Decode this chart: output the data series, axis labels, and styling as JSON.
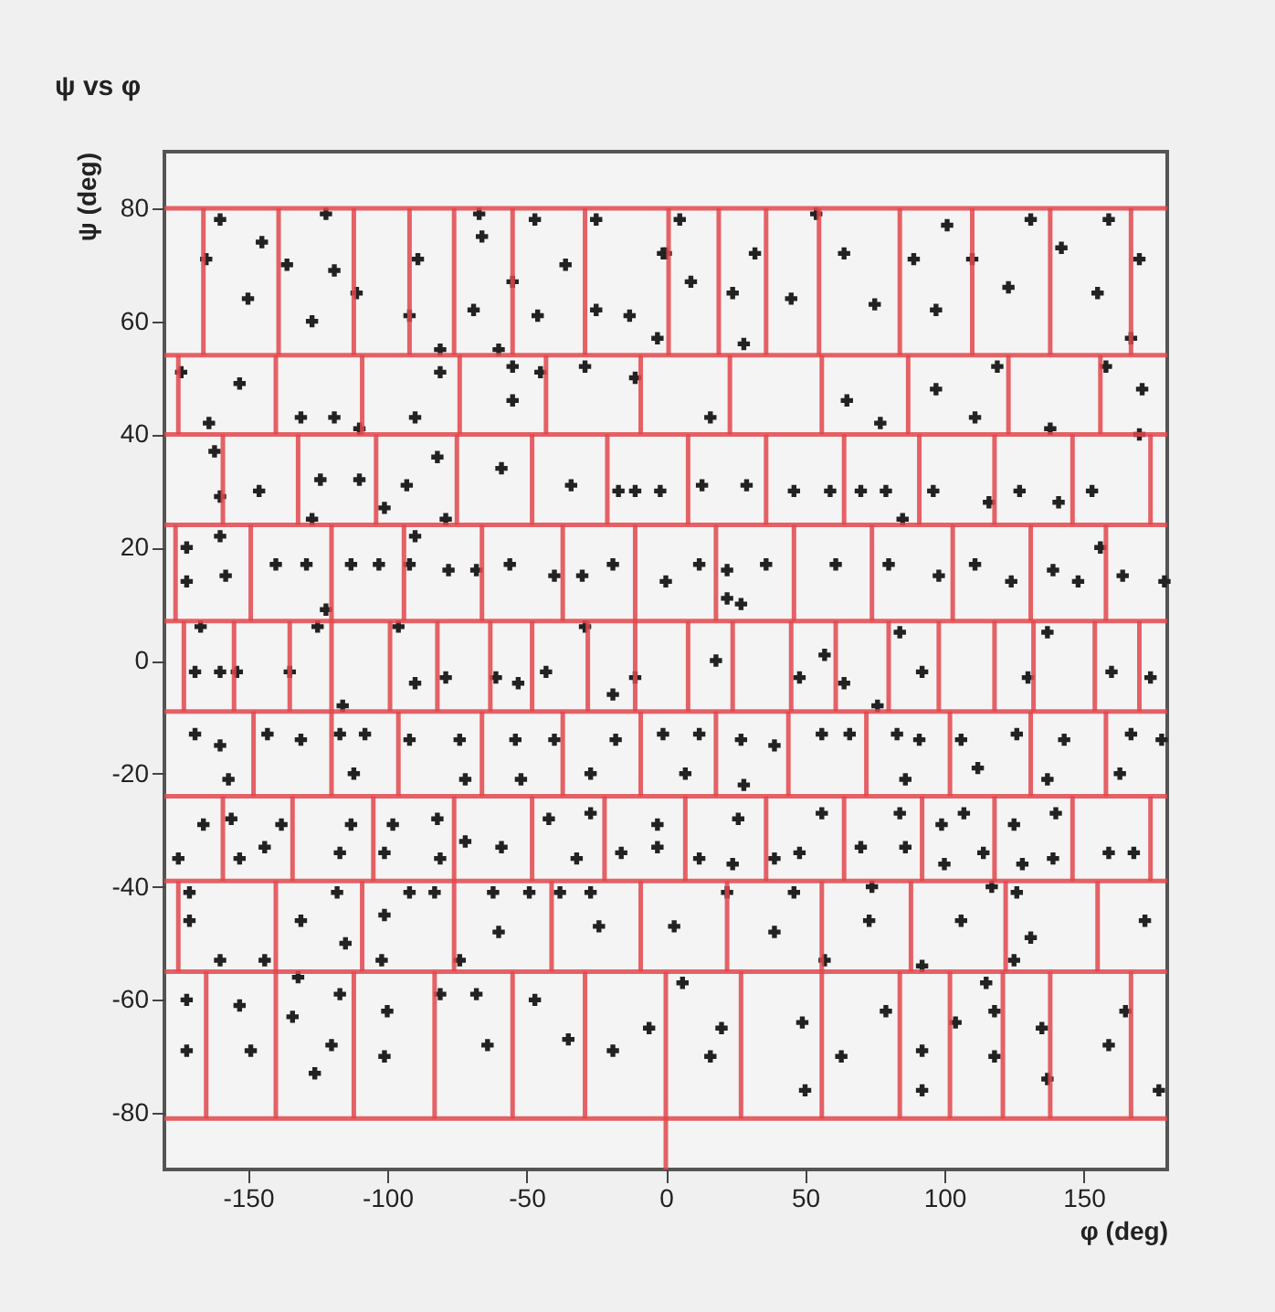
{
  "chart_data": {
    "type": "scatter",
    "title": "ψ vs φ",
    "xlabel": "φ (deg)",
    "ylabel": "ψ (deg)",
    "xlim": [
      -180,
      180
    ],
    "ylim": [
      -90,
      90
    ],
    "xticks": [
      -150,
      -100,
      -50,
      0,
      50,
      100,
      150
    ],
    "yticks": [
      -80,
      -60,
      -40,
      -20,
      0,
      20,
      40,
      60,
      80
    ],
    "grid": false,
    "series": [
      {
        "type": "scatter",
        "color": "#222222",
        "marker": "cross",
        "x": [
          -160,
          -145,
          -165,
          -136,
          -119,
          -150,
          -127,
          -122,
          -111,
          -89,
          -92,
          -67,
          -66,
          -55,
          -69,
          -47,
          -36,
          -46,
          -25,
          -25,
          -13,
          -1,
          -3,
          -81,
          -60,
          5,
          0,
          9,
          24,
          32,
          28,
          45,
          54,
          64,
          75,
          89,
          97,
          101,
          110,
          123,
          131,
          142,
          155,
          159,
          170,
          167,
          -153,
          -164,
          -131,
          -119,
          -90,
          -81,
          -55,
          -55,
          -45,
          -29,
          -11,
          -174,
          -110,
          16,
          65,
          77,
          97,
          111,
          119,
          138,
          158,
          171,
          170,
          -162,
          -146,
          -124,
          -110,
          -93,
          -82,
          -59,
          -34,
          -17,
          -11,
          -2,
          -160,
          -127,
          -101,
          -79,
          13,
          29,
          46,
          59,
          70,
          79,
          96,
          127,
          153,
          116,
          141,
          85,
          -172,
          -158,
          -140,
          -129,
          -113,
          -103,
          -92,
          -78,
          -68,
          -56,
          -40,
          -30,
          -19,
          0,
          -172,
          -160,
          -90,
          -122,
          12,
          22,
          36,
          22,
          61,
          80,
          98,
          111,
          124,
          139,
          148,
          164,
          179,
          27,
          156,
          -169,
          -160,
          -154,
          -135,
          -125,
          -116,
          -90,
          -79,
          -61,
          -53,
          -43,
          -29,
          -19,
          -11,
          -167,
          -96,
          18,
          48,
          64,
          92,
          84,
          130,
          137,
          160,
          174,
          57,
          76,
          -169,
          -160,
          -143,
          -131,
          -117,
          -108,
          -92,
          -74,
          -54,
          -40,
          -18,
          -1,
          -157,
          -112,
          -72,
          -52,
          -27,
          12,
          27,
          39,
          56,
          66,
          83,
          91,
          106,
          126,
          143,
          167,
          178,
          7,
          28,
          86,
          112,
          137,
          163,
          -166,
          -156,
          -153,
          -144,
          -138,
          -113,
          -117,
          -98,
          -101,
          -82,
          -81,
          -72,
          -59,
          -42,
          -32,
          -27,
          -16,
          -3,
          -3,
          -175,
          12,
          26,
          24,
          39,
          48,
          56,
          70,
          86,
          84,
          99,
          100,
          107,
          114,
          125,
          128,
          140,
          139,
          159,
          168,
          -171,
          -171,
          -160,
          -144,
          -131,
          -115,
          -118,
          -101,
          -102,
          -92,
          -83,
          -74,
          -62,
          -60,
          -49,
          -38,
          -27,
          -24,
          3,
          22,
          39,
          46,
          57,
          73,
          74,
          92,
          106,
          117,
          126,
          131,
          125,
          172,
          -172,
          -153,
          -149,
          -134,
          -126,
          -120,
          -117,
          -100,
          -101,
          -81,
          -68,
          -64,
          -47,
          -35,
          -19,
          -6,
          -172,
          -132,
          20,
          16,
          49,
          50,
          63,
          79,
          92,
          92,
          104,
          118,
          118,
          135,
          137,
          159,
          165,
          177,
          115,
          6
        ],
        "values": [
          78,
          74,
          71,
          70,
          69,
          64,
          60,
          79,
          65,
          71,
          61,
          79,
          75,
          67,
          62,
          78,
          70,
          61,
          78,
          62,
          61,
          72,
          57,
          55,
          55,
          78,
          72,
          67,
          65,
          72,
          56,
          64,
          79,
          72,
          63,
          71,
          62,
          77,
          71,
          66,
          78,
          73,
          65,
          78,
          71,
          57,
          49,
          42,
          43,
          43,
          43,
          51,
          52,
          46,
          51,
          52,
          50,
          51,
          41,
          43,
          46,
          42,
          48,
          43,
          52,
          41,
          52,
          48,
          40,
          37,
          30,
          32,
          32,
          31,
          36,
          34,
          31,
          30,
          30,
          30,
          29,
          25,
          27,
          25,
          31,
          31,
          30,
          30,
          30,
          30,
          30,
          30,
          30,
          28,
          28,
          25,
          14,
          15,
          17,
          17,
          17,
          17,
          17,
          16,
          16,
          17,
          15,
          15,
          17,
          14,
          20,
          22,
          22,
          9,
          17,
          16,
          17,
          11,
          17,
          17,
          15,
          17,
          14,
          16,
          14,
          15,
          14,
          10,
          20,
          -2,
          -2,
          -2,
          -2,
          6,
          -8,
          -4,
          -3,
          -3,
          -4,
          -2,
          6,
          -6,
          -3,
          6,
          6,
          0,
          -3,
          -4,
          -2,
          5,
          -3,
          5,
          -2,
          -3,
          1,
          -8,
          -13,
          -15,
          -13,
          -14,
          -13,
          -13,
          -14,
          -14,
          -14,
          -14,
          -14,
          -13,
          -21,
          -20,
          -21,
          -21,
          -20,
          -13,
          -14,
          -15,
          -13,
          -13,
          -13,
          -14,
          -14,
          -13,
          -14,
          -13,
          -14,
          -20,
          -22,
          -21,
          -19,
          -21,
          -20,
          -29,
          -28,
          -35,
          -33,
          -29,
          -29,
          -34,
          -29,
          -34,
          -28,
          -35,
          -32,
          -33,
          -28,
          -35,
          -27,
          -34,
          -29,
          -33,
          -35,
          -35,
          -28,
          -36,
          -35,
          -34,
          -27,
          -33,
          -33,
          -27,
          -29,
          -36,
          -27,
          -34,
          -29,
          -36,
          -27,
          -35,
          -34,
          -34,
          -41,
          -46,
          -53,
          -53,
          -46,
          -50,
          -41,
          -45,
          -53,
          -41,
          -41,
          -53,
          -41,
          -48,
          -41,
          -41,
          -41,
          -47,
          -47,
          -41,
          -48,
          -41,
          -53,
          -46,
          -40,
          -54,
          -46,
          -40,
          -41,
          -49,
          -53,
          -46,
          -60,
          -61,
          -69,
          -63,
          -73,
          -68,
          -59,
          -62,
          -70,
          -59,
          -59,
          -68,
          -60,
          -67,
          -69,
          -65,
          -69,
          -56,
          -65,
          -70,
          -64,
          -76,
          -70,
          -62,
          -69,
          -76,
          -64,
          -62,
          -70,
          -65,
          -74,
          -68,
          -62,
          -76,
          -57,
          -57
        ]
      },
      {
        "type": "line",
        "color": "#e0474c",
        "x": [
          -166,
          -166,
          null,
          -139,
          -139,
          null,
          -112,
          -112,
          null,
          -92,
          -92,
          null,
          -76,
          -76,
          null,
          -55,
          -55,
          null,
          -29,
          -29,
          null,
          1,
          1,
          null,
          19,
          19,
          null,
          36,
          36,
          null,
          55,
          55,
          null,
          84,
          84,
          null,
          110,
          110,
          null,
          138,
          138,
          null,
          167,
          167
        ],
        "values": [
          80,
          54,
          null,
          80,
          54,
          null,
          80,
          54,
          null,
          80,
          54,
          null,
          80,
          54,
          null,
          80,
          54,
          null,
          80,
          54,
          null,
          80,
          54,
          null,
          80,
          54,
          null,
          80,
          54,
          null,
          80,
          54,
          null,
          80,
          54,
          null,
          80,
          54,
          null,
          80,
          54,
          null,
          80,
          54
        ]
      },
      {
        "type": "line",
        "color": "#e0474c",
        "x": [
          -175,
          -175,
          null,
          -140,
          -140,
          null,
          -109,
          -109,
          null,
          -74,
          -74,
          null,
          -43,
          -43,
          null,
          -9,
          -9,
          null,
          23,
          23,
          null,
          56,
          56,
          null,
          87,
          87,
          null,
          123,
          123,
          null,
          156,
          156
        ],
        "values": [
          54,
          40,
          null,
          54,
          40,
          null,
          54,
          40,
          null,
          54,
          40,
          null,
          54,
          40,
          null,
          54,
          40,
          null,
          54,
          40,
          null,
          54,
          40,
          null,
          54,
          40,
          null,
          54,
          40,
          null,
          54,
          40
        ]
      },
      {
        "type": "line",
        "color": "#e0474c",
        "x": [
          -159,
          -159,
          null,
          -132,
          -132,
          null,
          -104,
          -104,
          null,
          -75,
          -75,
          null,
          -48,
          -48,
          null,
          -21,
          -21,
          null,
          8,
          8,
          null,
          36,
          36,
          null,
          64,
          64,
          null,
          91,
          91,
          null,
          118,
          118,
          null,
          146,
          146,
          null,
          174,
          174
        ],
        "values": [
          40,
          24,
          null,
          40,
          24,
          null,
          40,
          24,
          null,
          40,
          24,
          null,
          40,
          24,
          null,
          40,
          24,
          null,
          40,
          24,
          null,
          40,
          24,
          null,
          40,
          24,
          null,
          40,
          24,
          null,
          40,
          24,
          null,
          40,
          24,
          null,
          40,
          24
        ]
      },
      {
        "type": "line",
        "color": "#e0474c",
        "x": [
          -176,
          -176,
          null,
          -149,
          -149,
          null,
          -120,
          -120,
          null,
          -94,
          -94,
          null,
          -66,
          -66,
          null,
          -37,
          -37,
          null,
          -11,
          -11,
          null,
          18,
          18,
          null,
          46,
          46,
          null,
          74,
          74,
          null,
          103,
          103,
          null,
          131,
          131,
          null,
          158,
          158
        ],
        "values": [
          24,
          7,
          null,
          24,
          7,
          null,
          24,
          7,
          null,
          24,
          7,
          null,
          24,
          7,
          null,
          24,
          7,
          null,
          24,
          7,
          null,
          24,
          7,
          null,
          24,
          7,
          null,
          24,
          7,
          null,
          24,
          7,
          null,
          24,
          7,
          null,
          24,
          7
        ]
      },
      {
        "type": "line",
        "color": "#e0474c",
        "x": [
          -173,
          -173,
          null,
          -155,
          -155,
          null,
          -135,
          -135,
          null,
          -120,
          -120,
          null,
          -99,
          -99,
          null,
          -82,
          -82,
          null,
          -63,
          -63,
          null,
          -48,
          -48,
          null,
          -28,
          -28,
          null,
          -11,
          -11,
          null,
          8,
          8,
          null,
          24,
          24,
          null,
          45,
          45,
          null,
          61,
          61,
          null,
          80,
          80,
          null,
          98,
          98,
          null,
          118,
          118,
          null,
          132,
          132,
          null,
          154,
          154,
          null,
          170,
          170
        ],
        "values": [
          7,
          -9,
          null,
          7,
          -9,
          null,
          7,
          -9,
          null,
          7,
          -9,
          null,
          7,
          -9,
          null,
          7,
          -9,
          null,
          7,
          -9,
          null,
          7,
          -9,
          null,
          7,
          -9,
          null,
          7,
          -9,
          null,
          7,
          -9,
          null,
          7,
          -9,
          null,
          7,
          -9,
          null,
          7,
          -9,
          null,
          7,
          -9,
          null,
          7,
          -9,
          null,
          7,
          -9,
          null,
          7,
          -9,
          null,
          7,
          -9,
          null,
          7,
          -9
        ]
      },
      {
        "type": "line",
        "color": "#e0474c",
        "x": [
          -148,
          -148,
          null,
          -120,
          -120,
          null,
          -96,
          -96,
          null,
          -66,
          -66,
          null,
          -37,
          -37,
          null,
          -9,
          -9,
          null,
          18,
          18,
          null,
          44,
          44,
          null,
          72,
          72,
          null,
          102,
          102,
          null,
          131,
          131,
          null,
          158,
          158
        ],
        "values": [
          -9,
          -24,
          null,
          -9,
          -24,
          null,
          -9,
          -24,
          null,
          -9,
          -24,
          null,
          -9,
          -24,
          null,
          -9,
          -24,
          null,
          -9,
          -24,
          null,
          -9,
          -24,
          null,
          -9,
          -24,
          null,
          -9,
          -24,
          null,
          -9,
          -24,
          null,
          -9,
          -24
        ]
      },
      {
        "type": "line",
        "color": "#e0474c",
        "x": [
          -159,
          -159,
          null,
          -134,
          -134,
          null,
          -105,
          -105,
          null,
          -76,
          -76,
          null,
          -48,
          -48,
          null,
          -22,
          -22,
          null,
          7,
          7,
          null,
          36,
          36,
          null,
          64,
          64,
          null,
          92,
          92,
          null,
          118,
          118,
          null,
          146,
          146,
          null,
          174,
          174
        ],
        "values": [
          -24,
          -39,
          null,
          -24,
          -39,
          null,
          -24,
          -39,
          null,
          -24,
          -39,
          null,
          -24,
          -39,
          null,
          -24,
          -39,
          null,
          -24,
          -39,
          null,
          -24,
          -39,
          null,
          -24,
          -39,
          null,
          -24,
          -39,
          null,
          -24,
          -39,
          null,
          -24,
          -39,
          null,
          -24,
          -39
        ]
      },
      {
        "type": "line",
        "color": "#e0474c",
        "x": [
          -175,
          -175,
          null,
          -140,
          -140,
          null,
          -109,
          -109,
          null,
          -76,
          -76,
          null,
          -41,
          -41,
          null,
          -9,
          -9,
          null,
          22,
          22,
          null,
          56,
          56,
          null,
          88,
          88,
          null,
          122,
          122,
          null,
          155,
          155
        ],
        "values": [
          -39,
          -55,
          null,
          -39,
          -55,
          null,
          -39,
          -55,
          null,
          -39,
          -55,
          null,
          -39,
          -55,
          null,
          -39,
          -55,
          null,
          -39,
          -55,
          null,
          -39,
          -55,
          null,
          -39,
          -55,
          null,
          -39,
          -55,
          null,
          -39,
          -55
        ]
      },
      {
        "type": "line",
        "color": "#e0474c",
        "x": [
          -165,
          -165,
          null,
          -140,
          -140,
          null,
          -112,
          -112,
          null,
          -83,
          -83,
          null,
          -55,
          -55,
          null,
          -29,
          -29,
          null,
          0,
          0,
          null,
          27,
          27,
          null,
          56,
          56,
          null,
          84,
          84,
          null,
          102,
          102,
          null,
          121,
          121,
          null,
          138,
          138,
          null,
          167,
          167
        ],
        "values": [
          -55,
          -81,
          null,
          -55,
          -81,
          null,
          -55,
          -81,
          null,
          -55,
          -81,
          null,
          -55,
          -81,
          null,
          -55,
          -81,
          null,
          -55,
          -90,
          null,
          -55,
          -81,
          null,
          -55,
          -81,
          null,
          -55,
          -81,
          null,
          -55,
          -81,
          null,
          -55,
          -81,
          null,
          -55,
          -81,
          null,
          -55,
          -81
        ]
      }
    ],
    "ref_lines": [
      {
        "axis": "y",
        "value": 80,
        "color": "#e0474c"
      },
      {
        "axis": "y",
        "value": 54,
        "color": "#e0474c"
      },
      {
        "axis": "y",
        "value": 40,
        "color": "#e0474c"
      },
      {
        "axis": "y",
        "value": 24,
        "color": "#e0474c"
      },
      {
        "axis": "y",
        "value": 7,
        "color": "#e0474c"
      },
      {
        "axis": "y",
        "value": -9,
        "color": "#e0474c"
      },
      {
        "axis": "y",
        "value": -24,
        "color": "#e0474c"
      },
      {
        "axis": "y",
        "value": -39,
        "color": "#e0474c"
      },
      {
        "axis": "y",
        "value": -55,
        "color": "#e0474c"
      },
      {
        "axis": "y",
        "value": -81,
        "color": "#e0474c"
      }
    ]
  }
}
